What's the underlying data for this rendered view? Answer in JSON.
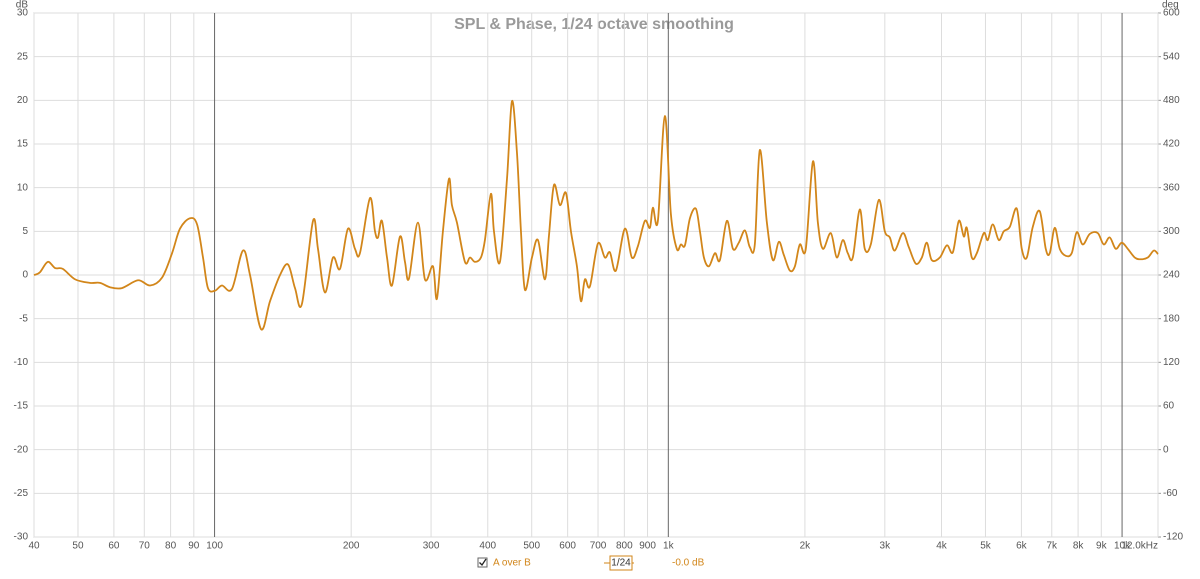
{
  "chart_data": {
    "type": "line",
    "title": "SPL & Phase, 1/24 octave smoothing",
    "y_label": "dB",
    "y2_label": "deg",
    "xscale": "log",
    "grid": true,
    "xlim": [
      40,
      12000
    ],
    "xticks": [
      40,
      50,
      60,
      70,
      80,
      90,
      100,
      200,
      300,
      400,
      500,
      600,
      700,
      800,
      900,
      {
        "value": 1000,
        "label": "1k"
      },
      {
        "value": 2000,
        "label": "2k"
      },
      {
        "value": 3000,
        "label": "3k"
      },
      {
        "value": 4000,
        "label": "4k"
      },
      {
        "value": 5000,
        "label": "5k"
      },
      {
        "value": 6000,
        "label": "6k"
      },
      {
        "value": 7000,
        "label": "7k"
      },
      {
        "value": 8000,
        "label": "8k"
      },
      {
        "value": 9000,
        "label": "9k"
      },
      {
        "value": 10000,
        "label": "10k"
      },
      {
        "value": 12000,
        "label": "12.0kHz"
      }
    ],
    "ylim": [
      -30,
      30
    ],
    "yticks": [
      -30,
      -25,
      -20,
      -15,
      -10,
      -5,
      0,
      5,
      10,
      15,
      20,
      25,
      30
    ],
    "y2lim": [
      -120,
      600
    ],
    "y2ticks": [
      -120,
      -60,
      0,
      60,
      120,
      180,
      240,
      300,
      360,
      420,
      480,
      540,
      600
    ],
    "x": [
      40,
      41.2,
      42.9,
      44.5,
      46.3,
      49.3,
      53.1,
      55.9,
      58.8,
      62.5,
      67.8,
      72.1,
      76.6,
      80.6,
      83.9,
      88.3,
      91.5,
      94.3,
      96.7,
      100.2,
      103.8,
      109.2,
      115.5,
      119.7,
      126.6,
      132.5,
      139.4,
      145.2,
      150.4,
      155.8,
      164.8,
      169.0,
      175.1,
      182.4,
      189.0,
      196.8,
      203.9,
      209.1,
      220.0,
      225.7,
      229.2,
      233.8,
      239.9,
      246.0,
      256.2,
      262.8,
      268.2,
      280.7,
      290.8,
      302.9,
      309.1,
      318.6,
      328.5,
      333.5,
      342.1,
      356.3,
      365.5,
      374.9,
      386.4,
      394.3,
      406.5,
      412.8,
      425.5,
      441.0,
      452.3,
      463.9,
      473.4,
      483.1,
      500.6,
      516.1,
      534.6,
      545.7,
      559.7,
      577.0,
      594.8,
      610.1,
      628.9,
      641.8,
      655.0,
      671.8,
      699.6,
      724.8,
      743.4,
      766.4,
      802.2,
      831.2,
      856.9,
      887.9,
      910.7,
      924.7,
      948.4,
      982.6,
      1013,
      1044,
      1066,
      1088,
      1116,
      1150,
      1174,
      1198,
      1229,
      1267,
      1299,
      1346,
      1388,
      1430,
      1475,
      1512,
      1551,
      1591,
      1649,
      1700,
      1752,
      1797,
      1853,
      1901,
      1949,
      2009,
      2083,
      2136,
      2191,
      2281,
      2351,
      2424,
      2486,
      2550,
      2642,
      2710,
      2794,
      2910,
      3000,
      3077,
      3156,
      3287,
      3388,
      3511,
      3620,
      3712,
      3807,
      3966,
      4110,
      4237,
      4368,
      4480,
      4548,
      4665,
      4785,
      4958,
      5058,
      5188,
      5349,
      5487,
      5656,
      5861,
      6011,
      6166,
      6356,
      6586,
      6789,
      6928,
      7106,
      7289,
      7514,
      7746,
      7946,
      8191,
      8488,
      8840,
      9111,
      9393,
      9683,
      9984,
      10292,
      10667,
      10993,
      11394,
      11746,
      12000
    ],
    "series": [
      {
        "name": "A over B",
        "color": "#d2861a",
        "values": [
          0,
          0.3,
          1.5,
          0.8,
          0.7,
          -0.5,
          -0.9,
          -0.9,
          -1.4,
          -1.5,
          -0.6,
          -1.2,
          -0.3,
          2.5,
          5.3,
          6.5,
          5.8,
          2,
          -1.5,
          -1.8,
          -1.2,
          -1.6,
          2.8,
          0,
          -6.2,
          -3,
          0,
          1.2,
          -1.5,
          -3.3,
          6.2,
          3,
          -2,
          2,
          0.7,
          5.3,
          3,
          2.5,
          8.8,
          5,
          4.3,
          6.2,
          2,
          -1.2,
          4.4,
          1.5,
          -0.4,
          6,
          -0.5,
          1,
          -2.7,
          5,
          11,
          8,
          6,
          1.5,
          2,
          1.5,
          2,
          4,
          9.3,
          5,
          1.5,
          11,
          19.9,
          14,
          5,
          -1.7,
          2,
          4,
          -0.5,
          4.5,
          10.3,
          8,
          9.4,
          5,
          1,
          -3,
          -0.5,
          -1.3,
          3.6,
          2,
          2.6,
          0.5,
          5.3,
          2,
          3.3,
          6.2,
          5.4,
          7.7,
          6.2,
          18.2,
          7,
          3,
          3.5,
          3.4,
          6.5,
          7.6,
          5,
          2,
          1,
          2.5,
          1.7,
          6.2,
          3,
          3.7,
          5.1,
          3.2,
          3.5,
          14.3,
          6,
          1.7,
          3.8,
          2.3,
          0.5,
          1,
          3.5,
          3,
          13,
          6,
          3,
          4.8,
          2,
          4,
          2.5,
          2,
          7.5,
          3,
          3.5,
          8.6,
          5,
          4.3,
          2.8,
          4.8,
          3.2,
          1.3,
          2,
          3.7,
          1.7,
          2,
          3.4,
          2.6,
          6.2,
          4.4,
          5.4,
          2,
          2.5,
          4.8,
          4,
          5.8,
          4,
          5,
          5.5,
          7.6,
          3,
          2,
          5.5,
          7.3,
          3,
          2.5,
          5.4,
          3,
          2.2,
          2.5,
          4.9,
          3.5,
          4.7,
          4.8,
          3.5,
          4.3,
          3,
          3.7,
          3,
          2,
          1.8,
          2.0,
          2.8,
          2.4
        ]
      }
    ],
    "annotations": [
      "1/24",
      "-0.0 dB"
    ]
  }
}
